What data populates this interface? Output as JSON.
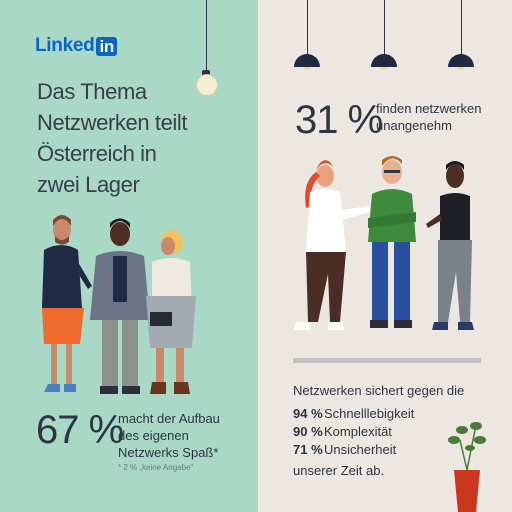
{
  "brand": {
    "name": "Linked",
    "badge": "in"
  },
  "left_panel": {
    "headline_lines": [
      "Das Thema",
      "Netzwerken teilt",
      "Österreich in",
      "zwei Lager"
    ],
    "stat": {
      "value": "67 %",
      "lines": [
        "macht der Aufbau",
        "des eigenen",
        "Netzwerks Spaß*"
      ],
      "footnote": "* 2 % „keine Angabe“"
    }
  },
  "right_panel": {
    "stat": {
      "value": "31 %",
      "lines": [
        "finden netzwerken",
        "unangenehm"
      ]
    },
    "security": {
      "intro": "Netzwerken sichert gegen die",
      "items": [
        {
          "pct": "94 %",
          "label": "Schnelllebigkeit"
        },
        {
          "pct": "90 %",
          "label": "Komplexität"
        },
        {
          "pct": "71 %",
          "label": "Unsicherheit"
        }
      ],
      "outro": "unserer Zeit ab."
    }
  },
  "colors": {
    "left_bg": "#a9d8c6",
    "right_bg": "#ede7e1",
    "brand": "#0a66c2",
    "text": "#2e3444"
  }
}
